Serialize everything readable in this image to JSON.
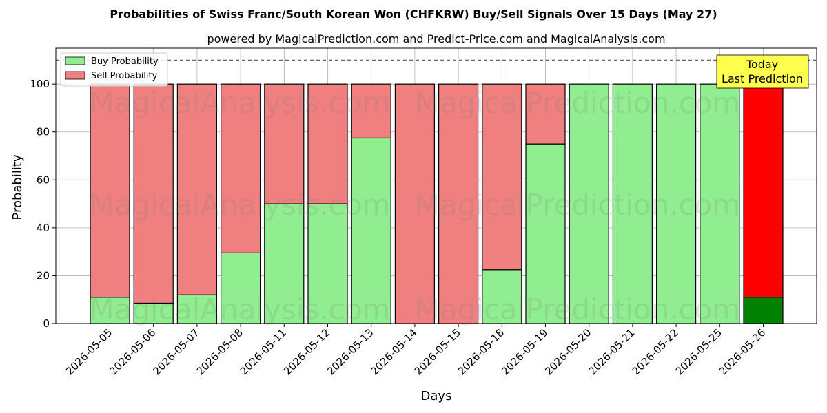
{
  "title": "Probabilities of Swiss Franc/South Korean Won (CHFKRW) Buy/Sell Signals Over 15 Days (May 27)",
  "subtitle": "powered by MagicalPrediction.com and Predict-Price.com and MagicalAnalysis.com",
  "watermarks": [
    "MagicalAnalysis.com",
    "MagicalPrediction.com"
  ],
  "annotation": {
    "line1": "Today",
    "line2": "Last Prediction"
  },
  "colors": {
    "buy": "#90ee90",
    "sell": "#f08080",
    "buy_today": "#008000",
    "sell_today": "#ff0000",
    "annotation_bg": "#ffff4d"
  },
  "chart_data": {
    "type": "bar",
    "stacked": true,
    "xlabel": "Days",
    "ylabel": "Probability",
    "ylim": [
      0,
      115
    ],
    "yticks": [
      0,
      20,
      40,
      60,
      80,
      100
    ],
    "reference_line": 110,
    "grid": true,
    "legend_position": "top-left",
    "categories": [
      "2026-05-05",
      "2026-05-06",
      "2026-05-07",
      "2026-05-08",
      "2026-05-11",
      "2026-05-12",
      "2026-05-13",
      "2026-05-14",
      "2026-05-15",
      "2026-05-18",
      "2026-05-19",
      "2026-05-20",
      "2026-05-21",
      "2026-05-22",
      "2026-05-25",
      "2026-05-26"
    ],
    "series": [
      {
        "name": "Buy Probability",
        "values": [
          11,
          8.5,
          12,
          29.5,
          50,
          50,
          77.5,
          0,
          0,
          22.5,
          75,
          100,
          100,
          100,
          100,
          11
        ]
      },
      {
        "name": "Sell Probability",
        "values": [
          89,
          91.5,
          88,
          70.5,
          50,
          50,
          22.5,
          100,
          100,
          77.5,
          25,
          0,
          0,
          0,
          0,
          89
        ]
      }
    ]
  }
}
